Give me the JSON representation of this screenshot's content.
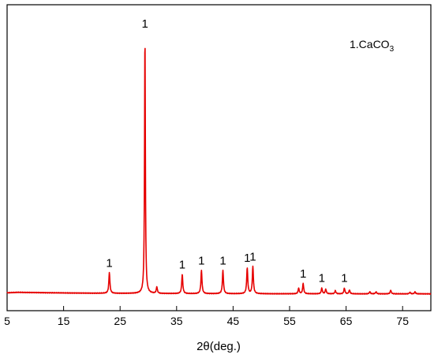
{
  "chart_data": {
    "type": "line",
    "title": "",
    "xlabel": "2θ(deg.)",
    "ylabel": "",
    "xlim": [
      5,
      80
    ],
    "ylim": [
      0,
      1.0
    ],
    "x_ticks": [
      5,
      15,
      25,
      35,
      45,
      55,
      65,
      75
    ],
    "y_ticks_shown": false,
    "grid": false,
    "line_color": "#e60000",
    "legend": {
      "placement": "top-right",
      "prefix": "1.CaCO",
      "subscript": "3"
    },
    "peaks": [
      {
        "x": 23.1,
        "y": 0.08,
        "label": "1"
      },
      {
        "x": 29.4,
        "y": 1.0,
        "label": "1"
      },
      {
        "x": 31.5,
        "y": 0.025,
        "label": ""
      },
      {
        "x": 36.0,
        "y": 0.075,
        "label": "1"
      },
      {
        "x": 39.4,
        "y": 0.09,
        "label": "1"
      },
      {
        "x": 43.2,
        "y": 0.09,
        "label": "1"
      },
      {
        "x": 47.5,
        "y": 0.1,
        "label": "1"
      },
      {
        "x": 48.5,
        "y": 0.105,
        "label": "1"
      },
      {
        "x": 56.6,
        "y": 0.022,
        "label": ""
      },
      {
        "x": 57.4,
        "y": 0.04,
        "label": "1"
      },
      {
        "x": 60.7,
        "y": 0.022,
        "label": "1"
      },
      {
        "x": 61.4,
        "y": 0.018,
        "label": ""
      },
      {
        "x": 63.1,
        "y": 0.012,
        "label": ""
      },
      {
        "x": 64.7,
        "y": 0.022,
        "label": "1"
      },
      {
        "x": 65.6,
        "y": 0.015,
        "label": ""
      },
      {
        "x": 69.2,
        "y": 0.008,
        "label": ""
      },
      {
        "x": 70.3,
        "y": 0.008,
        "label": ""
      },
      {
        "x": 72.9,
        "y": 0.014,
        "label": ""
      },
      {
        "x": 76.3,
        "y": 0.006,
        "label": ""
      },
      {
        "x": 77.2,
        "y": 0.008,
        "label": ""
      }
    ]
  }
}
